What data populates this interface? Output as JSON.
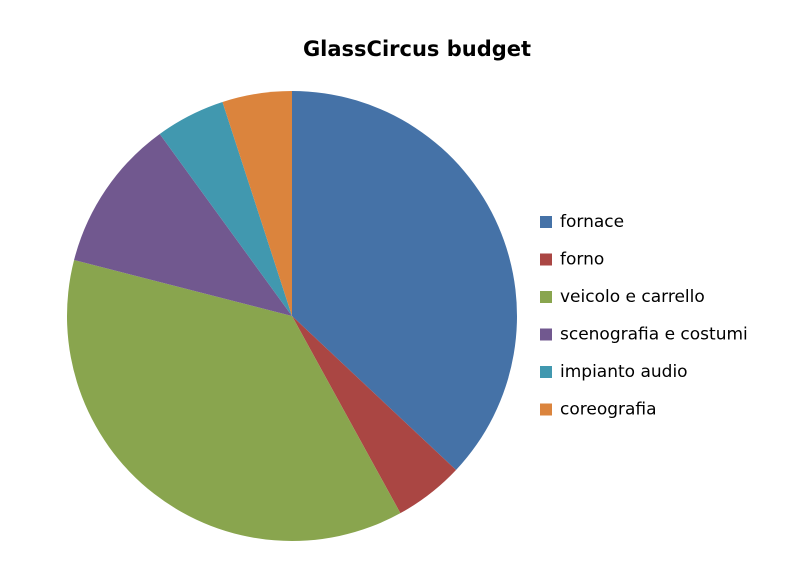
{
  "chart_data": {
    "type": "pie",
    "title": "GlassCircus budget",
    "categories": [
      "fornace",
      "forno",
      "veicolo e carrello",
      "scenografia e costumi",
      "impianto audio",
      "coreografia"
    ],
    "values": [
      37,
      5,
      37,
      11,
      5,
      5
    ],
    "colors": [
      "#4572a7",
      "#aa4643",
      "#89a54e",
      "#71588f",
      "#4198af",
      "#db843d"
    ],
    "legend": "right"
  }
}
